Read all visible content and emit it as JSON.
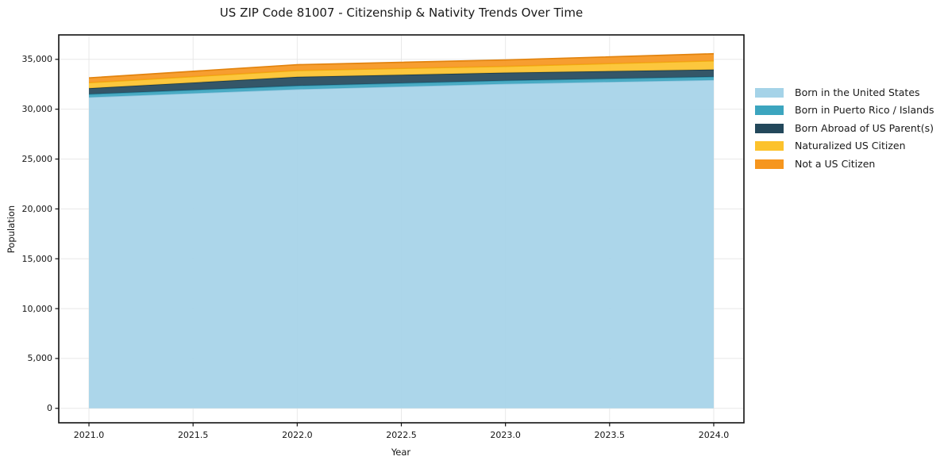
{
  "chart_data": {
    "type": "area",
    "stacked": true,
    "title": "US ZIP Code 81007 - Citizenship & Nativity Trends Over Time",
    "xlabel": "Year",
    "ylabel": "Population",
    "x": [
      2021,
      2022,
      2023,
      2024
    ],
    "series": [
      {
        "name": "Born in the United States",
        "color": "#A5D3E8",
        "edge": "#8CC3DC",
        "values": [
          31200,
          32000,
          32550,
          32930
        ]
      },
      {
        "name": "Born in Puerto Rico / Islands",
        "color": "#3CA5BF",
        "edge": "#2D93AD",
        "values": [
          300,
          350,
          320,
          320
        ]
      },
      {
        "name": "Born Abroad of US Parent(s)",
        "color": "#23485B",
        "edge": "#1A3A4B",
        "values": [
          600,
          890,
          790,
          720
        ]
      },
      {
        "name": "Naturalized US Citizen",
        "color": "#FCC22C",
        "edge": "#F0AE0E",
        "values": [
          560,
          640,
          640,
          880
        ]
      },
      {
        "name": "Not a US Citizen",
        "color": "#F6961E",
        "edge": "#E2830E",
        "values": [
          480,
          580,
          640,
          710
        ]
      }
    ],
    "totals": [
      33140,
      34460,
      34940,
      35560
    ],
    "xlim": [
      2020.855,
      2024.145
    ],
    "ylim": [
      -1450,
      37450
    ],
    "xticks": {
      "values": [
        2021.0,
        2021.5,
        2022.0,
        2022.5,
        2023.0,
        2023.5,
        2024.0
      ],
      "labels": [
        "2021.0",
        "2021.5",
        "2022.0",
        "2022.5",
        "2023.0",
        "2023.5",
        "2024.0"
      ]
    },
    "yticks": {
      "values": [
        0,
        5000,
        10000,
        15000,
        20000,
        25000,
        30000,
        35000
      ],
      "labels": [
        "0",
        "5,000",
        "10,000",
        "15,000",
        "20,000",
        "25,000",
        "30,000",
        "35,000"
      ]
    },
    "grid": true,
    "legend_position": "right-outside",
    "text_color": "#1a1a1a",
    "grid_color": "#e8e8e8",
    "spine_color": "#111111",
    "background": "#ffffff"
  }
}
